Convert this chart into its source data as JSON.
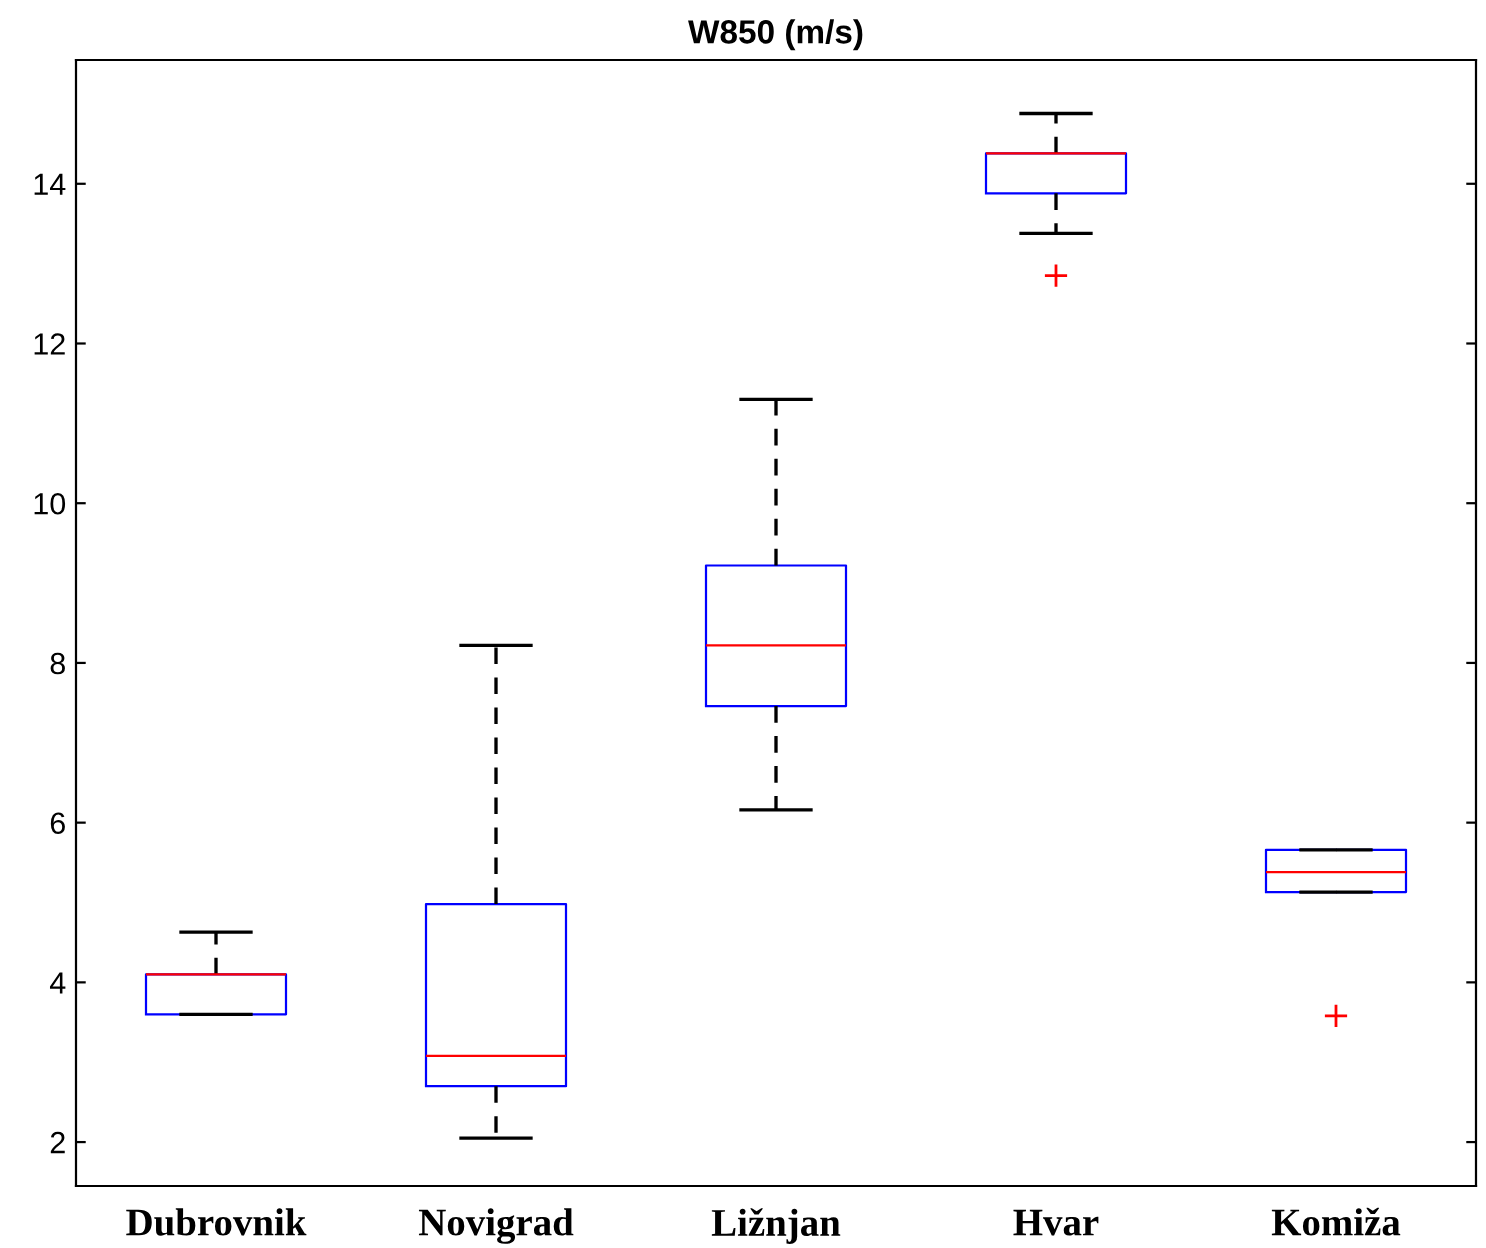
{
  "chart_data": {
    "type": "box",
    "title": "W850 (m/s)",
    "categories": [
      "Dubrovnik",
      "Novigrad",
      "Ližnjan",
      "Hvar",
      "Komiža"
    ],
    "series": [
      {
        "color": "#0000ff",
        "boxes": [
          {
            "low": 3.6,
            "q1": 3.6,
            "median": 4.1,
            "q3": 4.1,
            "high": 4.63
          },
          {
            "low": 2.05,
            "q1": 2.7,
            "median": 3.08,
            "q3": 4.98,
            "high": 8.22
          },
          {
            "low": 6.16,
            "q1": 7.46,
            "median": 8.22,
            "q3": 9.22,
            "high": 11.3
          },
          {
            "low": 13.38,
            "q1": 13.88,
            "median": 14.38,
            "q3": 14.38,
            "high": 14.88,
            "outliers": [
              12.85
            ]
          },
          {
            "low": 5.13,
            "q1": 5.13,
            "median": 5.38,
            "q3": 5.66,
            "high": 5.66,
            "outliers": [
              3.58
            ]
          }
        ]
      }
    ],
    "ylim": [
      1.45,
      15.55
    ],
    "yticks": [
      2,
      4,
      6,
      8,
      10,
      12,
      14
    ],
    "grid": false
  }
}
